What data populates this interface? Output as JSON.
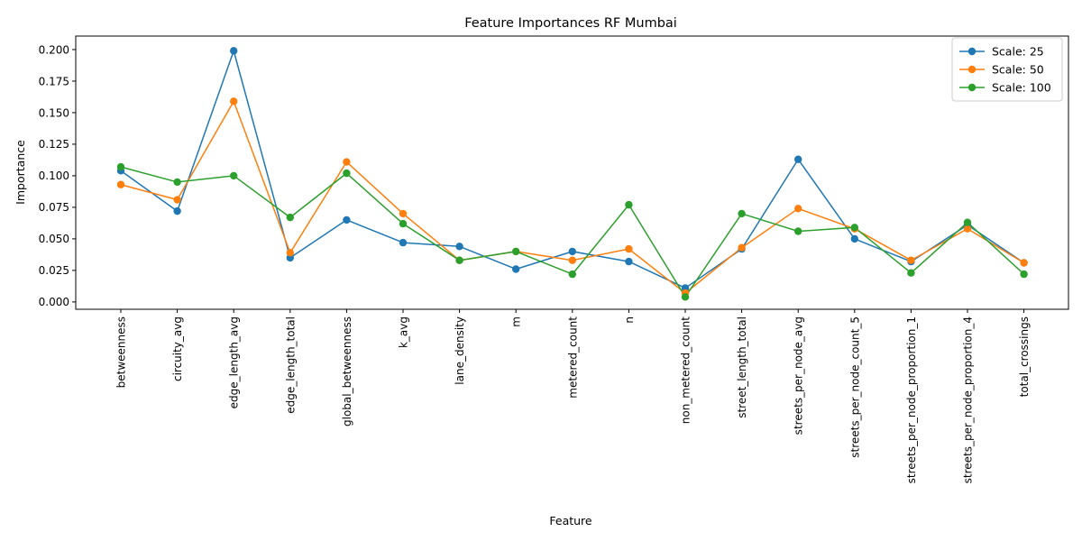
{
  "chart_data": {
    "type": "line",
    "title": "Feature Importances RF Mumbai",
    "xlabel": "Feature",
    "ylabel": "Importance",
    "ylim": [
      -0.0058,
      0.2107
    ],
    "yticks": [
      "0.000",
      "0.025",
      "0.050",
      "0.075",
      "0.100",
      "0.125",
      "0.150",
      "0.175",
      "0.200"
    ],
    "ytick_values": [
      0,
      0.025,
      0.05,
      0.075,
      0.1,
      0.125,
      0.15,
      0.175,
      0.2
    ],
    "categories": [
      "betweenness",
      "circuity_avg",
      "edge_length_avg",
      "edge_length_total",
      "global_betweenness",
      "k_avg",
      "lane_density",
      "m",
      "metered_count",
      "n",
      "non_metered_count",
      "street_length_total",
      "streets_per_node_avg",
      "streets_per_node_count_5",
      "streets_per_node_proportion_1",
      "streets_per_node_proportion_4",
      "total_crossings"
    ],
    "grid": false,
    "legend_position": "upper right",
    "series": [
      {
        "name": "Scale: 25",
        "color": "#1f77b4",
        "values": [
          0.104,
          0.072,
          0.199,
          0.035,
          0.065,
          0.047,
          0.044,
          0.026,
          0.04,
          0.032,
          0.011,
          0.042,
          0.113,
          0.05,
          0.032,
          0.061,
          0.031
        ]
      },
      {
        "name": "Scale: 50",
        "color": "#ff7f0e",
        "values": [
          0.093,
          0.081,
          0.159,
          0.039,
          0.111,
          0.07,
          0.033,
          0.04,
          0.033,
          0.042,
          0.007,
          0.043,
          0.074,
          0.058,
          0.033,
          0.058,
          0.031
        ]
      },
      {
        "name": "Scale: 100",
        "color": "#2ca02c",
        "values": [
          0.107,
          0.095,
          0.1,
          0.067,
          0.102,
          0.062,
          0.033,
          0.04,
          0.022,
          0.077,
          0.004,
          0.07,
          0.056,
          0.059,
          0.023,
          0.063,
          0.022
        ]
      }
    ]
  }
}
